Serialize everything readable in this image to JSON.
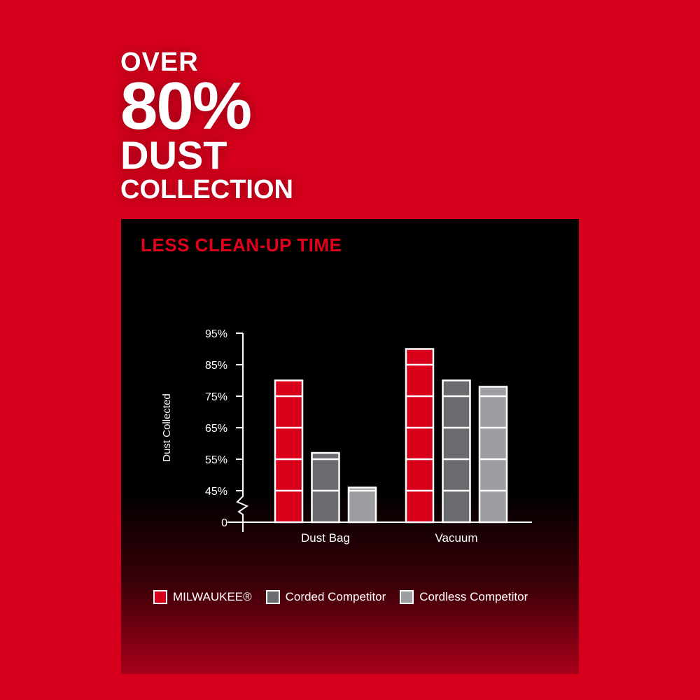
{
  "headline": {
    "line1": "OVER",
    "line2": "80%",
    "line3": "DUST",
    "line4": "COLLECTION"
  },
  "chart_data": {
    "type": "bar",
    "title": "LESS CLEAN-UP TIME",
    "ylabel": "Dust Collected",
    "xlabel": "",
    "categories": [
      "Dust Bag",
      "Vacuum"
    ],
    "yticks": [
      "95%",
      "85%",
      "75%",
      "65%",
      "55%",
      "45%",
      "0"
    ],
    "ylim": [
      35,
      95
    ],
    "axis_break": true,
    "series": [
      {
        "name": "MILWAUKEE®",
        "color": "#d9001b",
        "values": [
          80,
          90
        ]
      },
      {
        "name": "Corded Competitor",
        "color": "#6b6c6f",
        "values": [
          57,
          80
        ]
      },
      {
        "name": "Cordless Competitor",
        "color": "#9d9ea1",
        "values": [
          46,
          78
        ]
      }
    ],
    "legend": "bottom"
  },
  "colors": {
    "background": "#d6001c",
    "accent": "#e2001a"
  }
}
